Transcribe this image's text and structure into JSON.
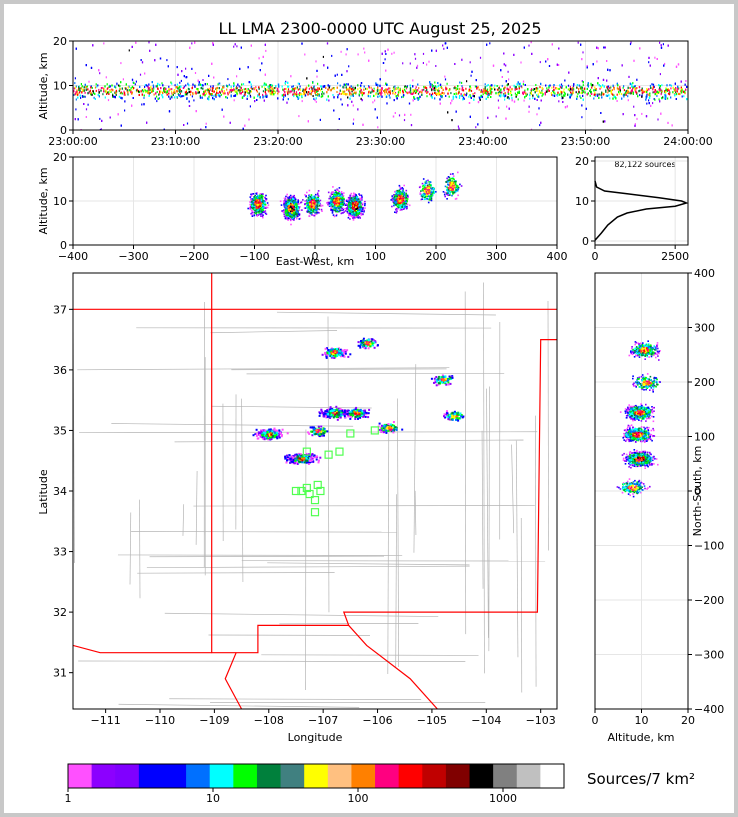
{
  "chart_data": [
    {
      "id": "time-altitude",
      "type": "heatmap",
      "title": "LL LMA 2300-0000 UTC August 25, 2025",
      "ylabel": "Altitude, km",
      "xlim": [
        "23:00:00",
        "24:00:00"
      ],
      "ylim": [
        0,
        20
      ],
      "x_ticks": [
        "23:00:00",
        "23:10:00",
        "23:20:00",
        "23:30:00",
        "23:40:00",
        "23:50:00",
        "24:00:00"
      ],
      "y_ticks": [
        "0",
        "10",
        "20"
      ],
      "description_values": {
        "band_center_km": 9,
        "band_core_km": [
          6,
          12
        ]
      }
    },
    {
      "id": "ew-altitude",
      "type": "heatmap",
      "xlabel": "East-West, km",
      "ylabel": "Altitude, km",
      "xlim": [
        -400,
        400
      ],
      "ylim": [
        0,
        20
      ],
      "x_ticks": [
        "−400",
        "−300",
        "−200",
        "−100",
        "0",
        "100",
        "200",
        "300",
        "400"
      ],
      "y_ticks": [
        "0",
        "10",
        "20"
      ],
      "clusters": [
        {
          "x": -95,
          "z": 9.5,
          "intensity": 3
        },
        {
          "x": -40,
          "z": 8.5,
          "intensity": 4
        },
        {
          "x": -5,
          "z": 9.5,
          "intensity": 2
        },
        {
          "x": 35,
          "z": 10,
          "intensity": 3
        },
        {
          "x": 65,
          "z": 9,
          "intensity": 4
        },
        {
          "x": 140,
          "z": 10.5,
          "intensity": 2
        },
        {
          "x": 185,
          "z": 12.5,
          "intensity": 1
        },
        {
          "x": 225,
          "z": 13.5,
          "intensity": 1
        }
      ]
    },
    {
      "id": "altitude-histogram",
      "type": "line",
      "annotation": "82,122 sources",
      "xlim": [
        0,
        2900
      ],
      "ylim": [
        0,
        20
      ],
      "x_ticks": [
        "0",
        "2500"
      ],
      "y_ticks": [
        "0",
        "10",
        "20"
      ],
      "points": [
        [
          0,
          0.2
        ],
        [
          200,
          2
        ],
        [
          400,
          4
        ],
        [
          700,
          6
        ],
        [
          1000,
          7
        ],
        [
          1600,
          8
        ],
        [
          2500,
          8.7
        ],
        [
          2850,
          9.5
        ],
        [
          2700,
          10
        ],
        [
          2000,
          10.8
        ],
        [
          1000,
          11.8
        ],
        [
          300,
          12.5
        ],
        [
          50,
          13.5
        ],
        [
          0,
          15
        ]
      ]
    },
    {
      "id": "plan-view",
      "type": "heatmap",
      "xlabel": "Longitude",
      "ylabel": "Latitude",
      "xlim": [
        -111.6,
        -102.7
      ],
      "ylim": [
        30.4,
        37.6
      ],
      "x_ticks": [
        "−111",
        "−110",
        "−109",
        "−108",
        "−107",
        "−106",
        "−105",
        "−104",
        "−103"
      ],
      "y_ticks": [
        "31",
        "32",
        "33",
        "34",
        "35",
        "36",
        "37"
      ],
      "clusters": [
        {
          "lon": -108.0,
          "lat": 34.95,
          "intensity": 3
        },
        {
          "lon": -107.4,
          "lat": 34.55,
          "intensity": 4
        },
        {
          "lon": -106.8,
          "lat": 35.3,
          "intensity": 3
        },
        {
          "lon": -106.4,
          "lat": 35.3,
          "intensity": 2
        },
        {
          "lon": -106.8,
          "lat": 36.3,
          "intensity": 2
        },
        {
          "lon": -106.2,
          "lat": 36.45,
          "intensity": 1
        },
        {
          "lon": -105.8,
          "lat": 35.05,
          "intensity": 1
        },
        {
          "lon": -104.8,
          "lat": 35.85,
          "intensity": 1
        },
        {
          "lon": -104.6,
          "lat": 35.25,
          "intensity": 1
        },
        {
          "lon": -107.1,
          "lat": 35.0,
          "intensity": 1
        }
      ],
      "stations": [
        [
          -107.5,
          34.0
        ],
        [
          -107.4,
          34.0
        ],
        [
          -107.3,
          34.05
        ],
        [
          -107.25,
          33.95
        ],
        [
          -107.15,
          33.85
        ],
        [
          -107.1,
          34.1
        ],
        [
          -107.15,
          33.65
        ],
        [
          -107.05,
          34.0
        ],
        [
          -106.7,
          34.65
        ],
        [
          -106.5,
          34.95
        ],
        [
          -106.05,
          35.0
        ],
        [
          -107.3,
          34.65
        ],
        [
          -106.9,
          34.6
        ]
      ]
    },
    {
      "id": "altitude-northsouth",
      "type": "heatmap",
      "xlabel": "Altitude, km",
      "ylabel": "North-South, km",
      "xlim": [
        0,
        20
      ],
      "ylim": [
        -400,
        400
      ],
      "x_ticks": [
        "0",
        "10",
        "20"
      ],
      "y_ticks": [
        "400",
        "300",
        "200",
        "100",
        "0",
        "−100",
        "−200",
        "−300",
        "−400"
      ],
      "clusters": [
        {
          "alt": 9.5,
          "ns": 145,
          "intensity": 3
        },
        {
          "alt": 9,
          "ns": 105,
          "intensity": 3
        },
        {
          "alt": 9.5,
          "ns": 60,
          "intensity": 4
        },
        {
          "alt": 10.5,
          "ns": 260,
          "intensity": 2
        },
        {
          "alt": 11,
          "ns": 200,
          "intensity": 1
        },
        {
          "alt": 8,
          "ns": 8,
          "intensity": 1
        }
      ]
    }
  ],
  "colorbar": {
    "label": "Sources/7 km²",
    "tick_labels": [
      "1",
      "10",
      "100",
      "1000"
    ],
    "colors": [
      "#ff50ff",
      "#8c00ff",
      "#8000ff",
      "#0000ff",
      "#0000ff",
      "#0070ff",
      "#00ffff",
      "#00ff00",
      "#00803c",
      "#408080",
      "#ffff00",
      "#ffc080",
      "#ff8000",
      "#ff0080",
      "#ff0000",
      "#c00000",
      "#800000",
      "#000000",
      "#808080",
      "#c0c0c0",
      "#ffffff"
    ]
  },
  "colors": {
    "state_border": "#ff0000",
    "county_lines": "#b4b4b4",
    "stations": "#50ff50"
  }
}
